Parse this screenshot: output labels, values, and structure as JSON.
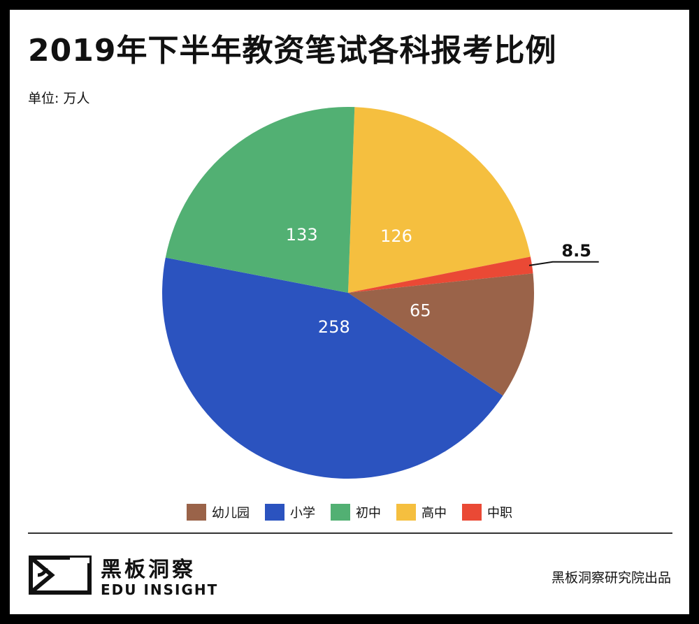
{
  "header": {
    "title": "2019年下半年教资笔试各科报考比例",
    "unit": "单位: 万人"
  },
  "chart_data": {
    "type": "pie",
    "title": "2019年下半年教资笔试各科报考比例",
    "unit": "单位: 万人",
    "categories": [
      "幼儿园",
      "小学",
      "初中",
      "高中",
      "中职"
    ],
    "values": [
      65,
      258,
      133,
      126,
      8.5
    ],
    "data_labels": [
      "65",
      "258",
      "133",
      "126",
      "8.5"
    ],
    "colors": [
      "#9A6349",
      "#2B53BF",
      "#52B073",
      "#F5BF3F",
      "#EA4935"
    ],
    "legend_position": "bottom",
    "start_angle_deg": 104,
    "direction": "clockwise-from-highschool"
  },
  "footer": {
    "brand_cn": "黑板洞察",
    "brand_en": "EDU INSIGHT",
    "credit": "黑板洞察研究院出品"
  }
}
